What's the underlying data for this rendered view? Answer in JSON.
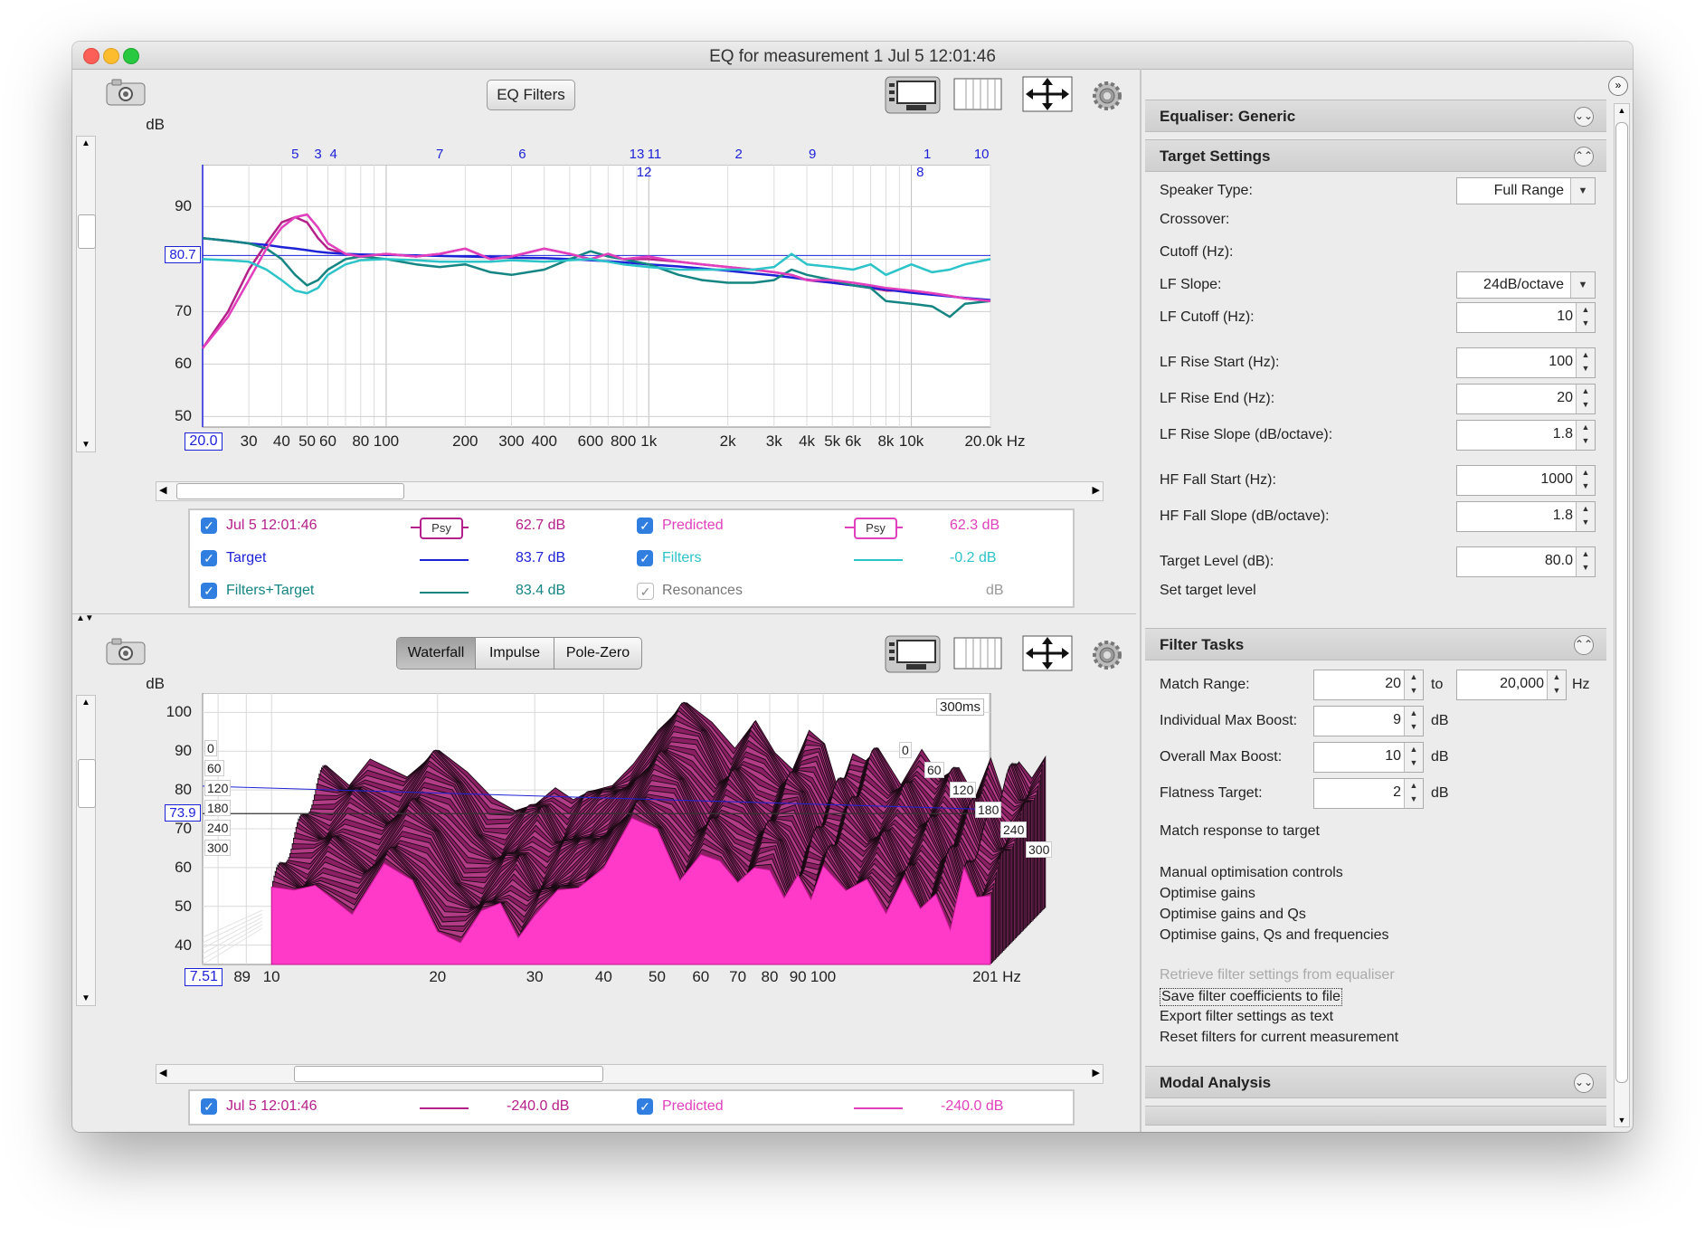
{
  "window": {
    "title": "EQ for measurement 1 Jul 5 12:01:46"
  },
  "top_panel": {
    "eq_filters_button": "EQ Filters",
    "y_unit": "dB",
    "y_ticks": [
      "90",
      "80.7",
      "70",
      "60",
      "50"
    ],
    "x_ticks": [
      "20.0",
      "30",
      "40",
      "50",
      "60",
      "80",
      "100",
      "200",
      "300",
      "400",
      "600",
      "800",
      "1k",
      "2k",
      "3k",
      "4k",
      "5k",
      "6k",
      "8k",
      "10k",
      "20.0k Hz"
    ],
    "filter_markers": [
      "5",
      "3",
      "4",
      "7",
      "6",
      "13",
      "11",
      "12",
      "2",
      "9",
      "1",
      "8",
      "10"
    ],
    "legend": [
      {
        "label": "Jul 5 12:01:46",
        "badge": "Psy",
        "value": "62.7 dB",
        "color": "#b5208a"
      },
      {
        "label": "Target",
        "value": "83.7 dB",
        "color": "#1e22d6"
      },
      {
        "label": "Filters+Target",
        "value": "83.4 dB",
        "color": "#148582"
      },
      {
        "label": "Predicted",
        "badge": "Psy",
        "value": "62.3 dB",
        "color": "#e23fbd"
      },
      {
        "label": "Filters",
        "value": "-0.2 dB",
        "color": "#2cc3c9"
      },
      {
        "label": "Resonances",
        "value": "dB",
        "color": "#777777"
      }
    ]
  },
  "chart_data": [
    {
      "type": "line",
      "title": "",
      "xlabel": "Hz",
      "ylabel": "dB",
      "xscale": "log",
      "xlim": [
        20,
        20000
      ],
      "ylim": [
        48,
        98
      ],
      "target_level_marker": 80.7,
      "x": [
        20,
        25,
        30,
        35,
        40,
        45,
        50,
        55,
        60,
        70,
        80,
        100,
        130,
        160,
        200,
        250,
        300,
        400,
        500,
        600,
        700,
        800,
        1000,
        1300,
        1600,
        2000,
        2500,
        3000,
        3500,
        4000,
        5000,
        6000,
        7000,
        8000,
        10000,
        12000,
        14000,
        16000,
        20000
      ],
      "series": [
        {
          "name": "Jul 5 12:01:46",
          "color": "#b5208a",
          "values": [
            63,
            70,
            78,
            83,
            87,
            88,
            87,
            84,
            82,
            81,
            80.5,
            81,
            80.5,
            81,
            82,
            80,
            80.5,
            82,
            81,
            80,
            81,
            80,
            80,
            79.5,
            79,
            78.5,
            78,
            77.5,
            77,
            76,
            75.5,
            75,
            74.5,
            74,
            74,
            73.5,
            73,
            72.5,
            72
          ]
        },
        {
          "name": "Target",
          "color": "#1e22d6",
          "values": [
            84,
            83.5,
            83,
            82.7,
            82.3,
            82,
            81.7,
            81.4,
            81.2,
            81,
            80.9,
            80.8,
            80.7,
            80.6,
            80.5,
            80.4,
            80.3,
            80.2,
            80,
            79.8,
            79.6,
            79.4,
            79,
            78.6,
            78.2,
            77.8,
            77.3,
            76.9,
            76.5,
            76.1,
            75.5,
            75,
            74.6,
            74.2,
            73.6,
            73.2,
            72.9,
            72.6,
            72.2
          ]
        },
        {
          "name": "Filters+Target",
          "color": "#148582",
          "values": [
            84,
            83.5,
            83,
            82,
            80,
            77,
            75,
            76,
            78,
            80,
            80.5,
            80,
            79,
            78.5,
            79,
            77.5,
            77,
            78,
            80,
            81.5,
            80.5,
            80,
            79,
            77,
            76,
            75.5,
            75.5,
            76,
            78,
            77,
            76,
            75,
            74.5,
            72,
            71.5,
            71,
            69,
            71.5,
            72
          ]
        },
        {
          "name": "Predicted",
          "color": "#e23fbd",
          "values": [
            63,
            69,
            76,
            82,
            86,
            88,
            88.5,
            86,
            83,
            81,
            80.5,
            81,
            80.5,
            81,
            82,
            80,
            80.5,
            82,
            81,
            80,
            81,
            80,
            80.5,
            79.5,
            79,
            78.5,
            78,
            77.5,
            77,
            76,
            76,
            75.5,
            75,
            74.5,
            74,
            73.5,
            73,
            72.5,
            72
          ]
        },
        {
          "name": "Filters",
          "color": "#2cc3c9",
          "values": [
            80,
            79.8,
            79.5,
            78,
            76,
            74,
            73.5,
            74.5,
            77,
            79,
            79.8,
            80,
            79.8,
            79.5,
            79.5,
            79.5,
            79.8,
            79.5,
            79.8,
            80,
            79.5,
            79,
            78.5,
            78,
            78,
            78,
            78,
            78.5,
            81,
            79,
            78.5,
            78,
            79,
            77,
            79,
            77.5,
            78,
            79,
            80
          ]
        }
      ]
    },
    {
      "type": "area",
      "title": "",
      "xlabel": "Hz",
      "ylabel": "dB",
      "xscale": "log",
      "xlim": [
        7.5,
        201
      ],
      "ylim": [
        35,
        105
      ],
      "target_level_marker": 73.9,
      "time_label": "300ms",
      "time_slices_ms": [
        "0",
        "60",
        "120",
        "180",
        "240",
        "300"
      ],
      "series": [
        {
          "name": "Predicted",
          "color": "#ff3ac8",
          "x": [
            10,
            11,
            12,
            14,
            16,
            18,
            20,
            22,
            24,
            26,
            28,
            30,
            33,
            36,
            40,
            45,
            50,
            55,
            60,
            65,
            70,
            75,
            80,
            85,
            90,
            95,
            100,
            110,
            120,
            130,
            140,
            150,
            160,
            170,
            180,
            190,
            201
          ],
          "values": [
            55,
            52,
            56,
            50,
            60,
            55,
            45,
            42,
            47,
            50,
            44,
            48,
            52,
            55,
            62,
            72,
            68,
            58,
            65,
            60,
            55,
            62,
            60,
            50,
            58,
            54,
            60,
            52,
            58,
            50,
            56,
            48,
            55,
            45,
            58,
            52,
            55
          ]
        }
      ]
    }
  ],
  "bottom_panel": {
    "tabs": [
      "Waterfall",
      "Impulse",
      "Pole-Zero"
    ],
    "y_unit": "dB",
    "y_ticks": [
      "100",
      "90",
      "80",
      "73.9",
      "70",
      "60",
      "50",
      "40"
    ],
    "x_ticks": [
      "7.51",
      "8",
      "9",
      "10",
      "20",
      "30",
      "40",
      "50",
      "60",
      "70",
      "80",
      "90",
      "100",
      "201 Hz"
    ],
    "legend": [
      {
        "label": "Jul 5 12:01:46",
        "value": "-240.0 dB",
        "color": "#b5208a"
      },
      {
        "label": "Predicted",
        "value": "-240.0 dB",
        "color": "#e23fbd"
      }
    ]
  },
  "right_panel": {
    "equaliser_section": "Equaliser: Generic",
    "target_section": "Target Settings",
    "speaker_type_label": "Speaker Type:",
    "speaker_type_value": "Full Range",
    "crossover_label": "Crossover:",
    "cutoff_label": "Cutoff (Hz):",
    "lf_slope_label": "LF Slope:",
    "lf_slope_value": "24dB/octave",
    "lf_cutoff_label": "LF Cutoff (Hz):",
    "lf_cutoff_value": "10",
    "lf_rise_start_label": "LF Rise Start (Hz):",
    "lf_rise_start_value": "100",
    "lf_rise_end_label": "LF Rise End (Hz):",
    "lf_rise_end_value": "20",
    "lf_rise_slope_label": "LF Rise Slope (dB/octave):",
    "lf_rise_slope_value": "1.8",
    "hf_fall_start_label": "HF Fall Start (Hz):",
    "hf_fall_start_value": "1000",
    "hf_fall_slope_label": "HF Fall Slope (dB/octave):",
    "hf_fall_slope_value": "1.8",
    "target_level_label": "Target Level (dB):",
    "target_level_value": "80.0",
    "set_target_level": "Set target level",
    "filter_tasks_section": "Filter Tasks",
    "match_range_label": "Match Range:",
    "match_range_from": "20",
    "match_range_to_label": "to",
    "match_range_to": "20,000",
    "hz_unit": "Hz",
    "db_unit": "dB",
    "individual_max_boost_label": "Individual Max Boost:",
    "individual_max_boost_value": "9",
    "overall_max_boost_label": "Overall Max Boost:",
    "overall_max_boost_value": "10",
    "flatness_target_label": "Flatness Target:",
    "flatness_target_value": "2",
    "match_response": "Match response to target",
    "manual_optimisation": "Manual optimisation controls",
    "optimise_gains": "Optimise gains",
    "optimise_gains_qs": "Optimise gains and Qs",
    "optimise_gains_qs_freqs": "Optimise gains, Qs and frequencies",
    "retrieve_filters": "Retrieve filter settings from equaliser",
    "save_coefficients": "Save filter coefficients to file",
    "export_text": "Export filter settings as text",
    "reset_filters": "Reset filters for current measurement",
    "modal_section": "Modal Analysis"
  }
}
